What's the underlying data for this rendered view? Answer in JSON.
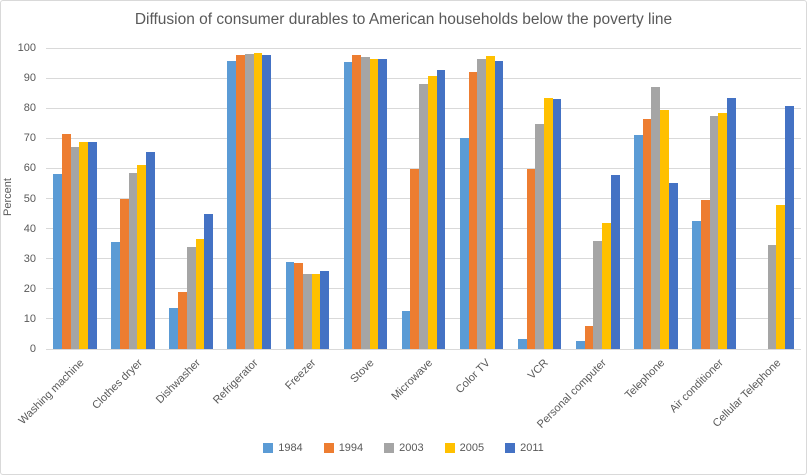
{
  "chart_data": {
    "type": "bar",
    "title": "Diffusion of consumer durables to American households below the poverty line",
    "xlabel": "",
    "ylabel": "Percent",
    "ylim": [
      0,
      100
    ],
    "y_ticks": [
      0,
      10,
      20,
      30,
      40,
      50,
      60,
      70,
      80,
      90,
      100
    ],
    "grid": true,
    "legend_position": "bottom",
    "categories": [
      "Washing machine",
      "Clothes dryer",
      "Dishwasher",
      "Refrigerator",
      "Freezer",
      "Stove",
      "Microwave",
      "Color TV",
      "VCR",
      "Personal computer",
      "Telephone",
      "Air conditioner",
      "Cellular Telephone"
    ],
    "series": [
      {
        "name": "1984",
        "color": "#5B9BD5",
        "values": [
          58,
          35.5,
          13.5,
          95.8,
          29,
          95.2,
          12.5,
          70.2,
          3.4,
          2.8,
          71,
          42.5,
          0
        ]
      },
      {
        "name": "1994",
        "color": "#ED7D31",
        "values": [
          71.5,
          50,
          19,
          97.7,
          28.5,
          97.8,
          59.9,
          91.9,
          59.9,
          7.5,
          76.5,
          49.5,
          0
        ]
      },
      {
        "name": "2003",
        "color": "#A5A5A5",
        "values": [
          67,
          58.5,
          34,
          98,
          25,
          97,
          88.2,
          96.4,
          74.8,
          35.9,
          87,
          77.5,
          34.5
        ]
      },
      {
        "name": "2005",
        "color": "#FFC000",
        "values": [
          68.8,
          61,
          36.5,
          98.3,
          25,
          96.5,
          90.7,
          97.4,
          83.4,
          42,
          79.5,
          78.5,
          48
        ]
      },
      {
        "name": "2011",
        "color": "#4472C4",
        "values": [
          68.8,
          65.5,
          44.9,
          97.8,
          26,
          96.4,
          92.7,
          95.8,
          83.2,
          57.9,
          55,
          83.3,
          80.7
        ]
      }
    ]
  },
  "legend": {
    "items": [
      "1984",
      "1994",
      "2003",
      "2005",
      "2011"
    ]
  },
  "style_colors": {
    "text": "#595959",
    "gridline": "#D9D9D9",
    "border": "#D9D9D9"
  }
}
